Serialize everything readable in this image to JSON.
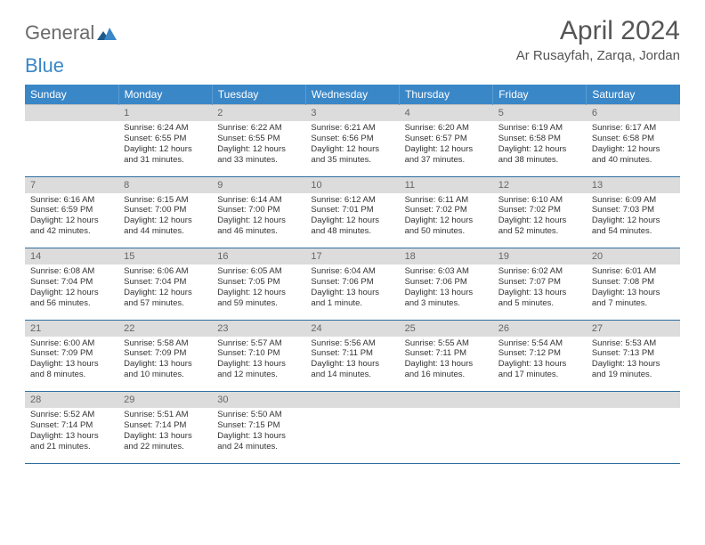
{
  "logo": {
    "word1": "General",
    "word2": "Blue"
  },
  "title": "April 2024",
  "location": "Ar Rusayfah, Zarqa, Jordan",
  "weekdays": [
    "Sunday",
    "Monday",
    "Tuesday",
    "Wednesday",
    "Thursday",
    "Friday",
    "Saturday"
  ],
  "colors": {
    "header_bg": "#3a87c8",
    "header_text": "#ffffff",
    "daynum_bg": "#dcdcdc",
    "rule": "#2f6fa0",
    "text": "#333333",
    "logo_gray": "#6b6b6b",
    "logo_blue": "#3a87c8"
  },
  "cells": [
    [
      {},
      {
        "n": "1",
        "l1": "Sunrise: 6:24 AM",
        "l2": "Sunset: 6:55 PM",
        "l3": "Daylight: 12 hours",
        "l4": "and 31 minutes."
      },
      {
        "n": "2",
        "l1": "Sunrise: 6:22 AM",
        "l2": "Sunset: 6:55 PM",
        "l3": "Daylight: 12 hours",
        "l4": "and 33 minutes."
      },
      {
        "n": "3",
        "l1": "Sunrise: 6:21 AM",
        "l2": "Sunset: 6:56 PM",
        "l3": "Daylight: 12 hours",
        "l4": "and 35 minutes."
      },
      {
        "n": "4",
        "l1": "Sunrise: 6:20 AM",
        "l2": "Sunset: 6:57 PM",
        "l3": "Daylight: 12 hours",
        "l4": "and 37 minutes."
      },
      {
        "n": "5",
        "l1": "Sunrise: 6:19 AM",
        "l2": "Sunset: 6:58 PM",
        "l3": "Daylight: 12 hours",
        "l4": "and 38 minutes."
      },
      {
        "n": "6",
        "l1": "Sunrise: 6:17 AM",
        "l2": "Sunset: 6:58 PM",
        "l3": "Daylight: 12 hours",
        "l4": "and 40 minutes."
      }
    ],
    [
      {
        "n": "7",
        "l1": "Sunrise: 6:16 AM",
        "l2": "Sunset: 6:59 PM",
        "l3": "Daylight: 12 hours",
        "l4": "and 42 minutes."
      },
      {
        "n": "8",
        "l1": "Sunrise: 6:15 AM",
        "l2": "Sunset: 7:00 PM",
        "l3": "Daylight: 12 hours",
        "l4": "and 44 minutes."
      },
      {
        "n": "9",
        "l1": "Sunrise: 6:14 AM",
        "l2": "Sunset: 7:00 PM",
        "l3": "Daylight: 12 hours",
        "l4": "and 46 minutes."
      },
      {
        "n": "10",
        "l1": "Sunrise: 6:12 AM",
        "l2": "Sunset: 7:01 PM",
        "l3": "Daylight: 12 hours",
        "l4": "and 48 minutes."
      },
      {
        "n": "11",
        "l1": "Sunrise: 6:11 AM",
        "l2": "Sunset: 7:02 PM",
        "l3": "Daylight: 12 hours",
        "l4": "and 50 minutes."
      },
      {
        "n": "12",
        "l1": "Sunrise: 6:10 AM",
        "l2": "Sunset: 7:02 PM",
        "l3": "Daylight: 12 hours",
        "l4": "and 52 minutes."
      },
      {
        "n": "13",
        "l1": "Sunrise: 6:09 AM",
        "l2": "Sunset: 7:03 PM",
        "l3": "Daylight: 12 hours",
        "l4": "and 54 minutes."
      }
    ],
    [
      {
        "n": "14",
        "l1": "Sunrise: 6:08 AM",
        "l2": "Sunset: 7:04 PM",
        "l3": "Daylight: 12 hours",
        "l4": "and 56 minutes."
      },
      {
        "n": "15",
        "l1": "Sunrise: 6:06 AM",
        "l2": "Sunset: 7:04 PM",
        "l3": "Daylight: 12 hours",
        "l4": "and 57 minutes."
      },
      {
        "n": "16",
        "l1": "Sunrise: 6:05 AM",
        "l2": "Sunset: 7:05 PM",
        "l3": "Daylight: 12 hours",
        "l4": "and 59 minutes."
      },
      {
        "n": "17",
        "l1": "Sunrise: 6:04 AM",
        "l2": "Sunset: 7:06 PM",
        "l3": "Daylight: 13 hours",
        "l4": "and 1 minute."
      },
      {
        "n": "18",
        "l1": "Sunrise: 6:03 AM",
        "l2": "Sunset: 7:06 PM",
        "l3": "Daylight: 13 hours",
        "l4": "and 3 minutes."
      },
      {
        "n": "19",
        "l1": "Sunrise: 6:02 AM",
        "l2": "Sunset: 7:07 PM",
        "l3": "Daylight: 13 hours",
        "l4": "and 5 minutes."
      },
      {
        "n": "20",
        "l1": "Sunrise: 6:01 AM",
        "l2": "Sunset: 7:08 PM",
        "l3": "Daylight: 13 hours",
        "l4": "and 7 minutes."
      }
    ],
    [
      {
        "n": "21",
        "l1": "Sunrise: 6:00 AM",
        "l2": "Sunset: 7:09 PM",
        "l3": "Daylight: 13 hours",
        "l4": "and 8 minutes."
      },
      {
        "n": "22",
        "l1": "Sunrise: 5:58 AM",
        "l2": "Sunset: 7:09 PM",
        "l3": "Daylight: 13 hours",
        "l4": "and 10 minutes."
      },
      {
        "n": "23",
        "l1": "Sunrise: 5:57 AM",
        "l2": "Sunset: 7:10 PM",
        "l3": "Daylight: 13 hours",
        "l4": "and 12 minutes."
      },
      {
        "n": "24",
        "l1": "Sunrise: 5:56 AM",
        "l2": "Sunset: 7:11 PM",
        "l3": "Daylight: 13 hours",
        "l4": "and 14 minutes."
      },
      {
        "n": "25",
        "l1": "Sunrise: 5:55 AM",
        "l2": "Sunset: 7:11 PM",
        "l3": "Daylight: 13 hours",
        "l4": "and 16 minutes."
      },
      {
        "n": "26",
        "l1": "Sunrise: 5:54 AM",
        "l2": "Sunset: 7:12 PM",
        "l3": "Daylight: 13 hours",
        "l4": "and 17 minutes."
      },
      {
        "n": "27",
        "l1": "Sunrise: 5:53 AM",
        "l2": "Sunset: 7:13 PM",
        "l3": "Daylight: 13 hours",
        "l4": "and 19 minutes."
      }
    ],
    [
      {
        "n": "28",
        "l1": "Sunrise: 5:52 AM",
        "l2": "Sunset: 7:14 PM",
        "l3": "Daylight: 13 hours",
        "l4": "and 21 minutes."
      },
      {
        "n": "29",
        "l1": "Sunrise: 5:51 AM",
        "l2": "Sunset: 7:14 PM",
        "l3": "Daylight: 13 hours",
        "l4": "and 22 minutes."
      },
      {
        "n": "30",
        "l1": "Sunrise: 5:50 AM",
        "l2": "Sunset: 7:15 PM",
        "l3": "Daylight: 13 hours",
        "l4": "and 24 minutes."
      },
      {},
      {},
      {},
      {}
    ]
  ]
}
